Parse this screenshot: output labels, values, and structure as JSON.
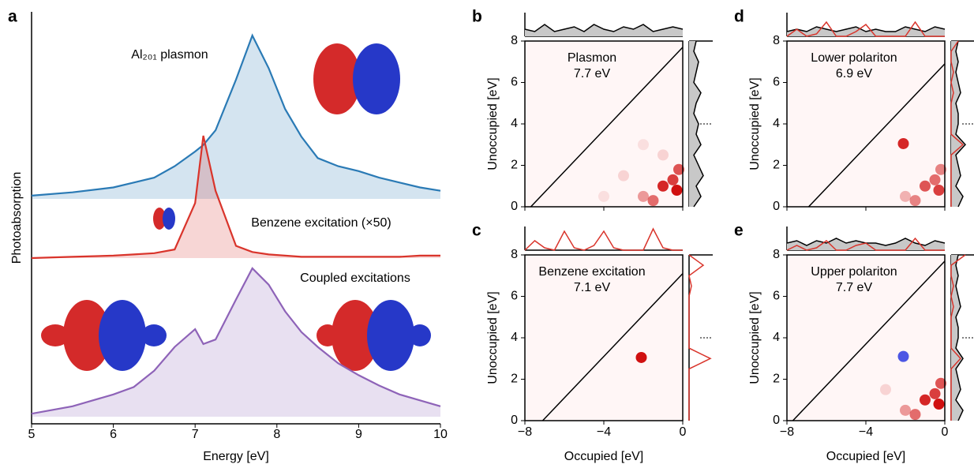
{
  "chart_data": [
    {
      "type": "line",
      "panel": "a",
      "xlabel": "Energy [eV]",
      "ylabel": "Photoabsorption",
      "x": [
        5,
        5.5,
        6,
        6.25,
        6.5,
        6.75,
        7,
        7.1,
        7.25,
        7.5,
        7.7,
        7.9,
        8.1,
        8.3,
        8.5,
        8.75,
        9,
        9.25,
        9.5,
        9.75,
        10
      ],
      "xlim": [
        5,
        10
      ],
      "xticks": [
        5,
        6,
        7,
        8,
        9,
        10
      ],
      "ylim": [
        0,
        1
      ],
      "series": [
        {
          "name": "Al₂₀₁ plasmon",
          "color": "#2a7ab5",
          "values": [
            0.02,
            0.04,
            0.07,
            0.1,
            0.13,
            0.2,
            0.29,
            0.33,
            0.42,
            0.73,
            1.0,
            0.8,
            0.55,
            0.38,
            0.25,
            0.2,
            0.17,
            0.13,
            0.1,
            0.07,
            0.05
          ]
        },
        {
          "name": "Benzene excitation (×50)",
          "color": "#d9342b",
          "values": [
            0,
            0.01,
            0.02,
            0.03,
            0.04,
            0.07,
            0.45,
            1.0,
            0.55,
            0.1,
            0.05,
            0.03,
            0.02,
            0.01,
            0.01,
            0.01,
            0.01,
            0.01,
            0.01,
            0.02,
            0.02
          ]
        },
        {
          "name": "Coupled excitations",
          "color": "#8e63b8",
          "values": [
            0.02,
            0.07,
            0.15,
            0.2,
            0.31,
            0.47,
            0.59,
            0.49,
            0.52,
            0.79,
            1.0,
            0.89,
            0.71,
            0.57,
            0.47,
            0.36,
            0.28,
            0.21,
            0.15,
            0.11,
            0.07
          ]
        }
      ]
    },
    {
      "type": "heatmap",
      "panel": "b",
      "title": "Plasmon",
      "title_color": "#2a7ab5",
      "energy": 7.7,
      "energy_label": "7.7 eV",
      "ylabel": "Unoccupied [eV]",
      "xlim": [
        -8,
        0
      ],
      "xticks": [
        -8,
        -4,
        0
      ],
      "ylim": [
        0,
        8
      ],
      "yticks": [
        0,
        2,
        4,
        6,
        8
      ],
      "hline": 4,
      "spots": {
        "x": [
          -1,
          -0.5,
          -0.3,
          -1.5,
          -0.2,
          -2,
          -3,
          -1,
          -2,
          -4
        ],
        "y": [
          1,
          1.3,
          0.8,
          0.3,
          1.8,
          0.5,
          1.5,
          2.5,
          3,
          0.5
        ],
        "values": [
          0.9,
          0.8,
          1,
          0.6,
          0.7,
          0.4,
          0.15,
          0.15,
          0.1,
          0.1
        ]
      },
      "margin_x": [
        -8,
        -7.5,
        -7,
        -6.5,
        -6,
        -5.5,
        -5,
        -4.5,
        -4,
        -3.5,
        -3,
        -2.5,
        -2,
        -1.5,
        -1,
        -0.5,
        0
      ],
      "top": [
        {
          "color": "#000000",
          "fill": "#c8c8c8",
          "values": [
            0.3,
            0.2,
            0.5,
            0.2,
            0.3,
            0.4,
            0.2,
            0.5,
            0.3,
            0.2,
            0.4,
            0.3,
            0.5,
            0.2,
            0.3,
            0.4,
            0.3
          ]
        }
      ],
      "margin_y": [
        0,
        0.5,
        1,
        1.5,
        2,
        2.5,
        3,
        3.5,
        4,
        4.5,
        5,
        5.5,
        6,
        6.5,
        7,
        7.5,
        8
      ],
      "right": [
        {
          "color": "#000000",
          "fill": "#c8c8c8",
          "values": [
            0.2,
            0.5,
            0.3,
            0.6,
            0.4,
            0.2,
            0.5,
            0.3,
            0.4,
            0.2,
            0.3,
            0.5,
            0.2,
            0.3,
            0.4,
            0.2,
            0.3
          ]
        }
      ]
    },
    {
      "type": "heatmap",
      "panel": "c",
      "title": "Benzene excitation",
      "title_color": "#d9342b",
      "energy": 7.1,
      "energy_label": "7.1 eV",
      "ylabel": "Unoccupied [eV]",
      "xlabel": "Occupied [eV]",
      "xlim": [
        -8,
        0
      ],
      "xticks": [
        {
          "value": -8,
          "label": "−8"
        },
        {
          "value": -4,
          "label": "−4"
        },
        0
      ],
      "ylim": [
        0,
        8
      ],
      "yticks": [
        0,
        2,
        4,
        6,
        8
      ],
      "hline": 4,
      "spots": {
        "x": [
          -2.1
        ],
        "y": [
          3.05
        ],
        "values": [
          1
        ]
      },
      "margin_x": [
        -8,
        -7.5,
        -7,
        -6.5,
        -6,
        -5.5,
        -5,
        -4.5,
        -4,
        -3.5,
        -3,
        -2.5,
        -2,
        -1.5,
        -1,
        -0.5,
        0
      ],
      "top": [
        {
          "color": "#d9342b",
          "values": [
            0,
            0.4,
            0.1,
            0,
            0.8,
            0.1,
            0,
            0.2,
            0.8,
            0.1,
            0,
            0,
            0,
            0.9,
            0.1,
            0,
            0
          ]
        }
      ],
      "margin_y": [
        0,
        0.5,
        1,
        1.5,
        2,
        2.5,
        3,
        3.5,
        4,
        4.5,
        5,
        5.5,
        6,
        6.5,
        7,
        7.5,
        8
      ],
      "right": [
        {
          "color": "#d9342b",
          "values": [
            0,
            0,
            0,
            0,
            0,
            0,
            0.9,
            0,
            0,
            0,
            0,
            0,
            0,
            0.1,
            0,
            0.6,
            0
          ]
        }
      ]
    },
    {
      "type": "heatmap",
      "panel": "d",
      "title": "Lower polariton",
      "title_color": "#9b59b6",
      "energy": 6.9,
      "energy_label": "6.9 eV",
      "ylabel": "Unoccupied [eV]",
      "xlim": [
        -8,
        0
      ],
      "xticks": [
        -8,
        -4,
        0
      ],
      "ylim": [
        0,
        8
      ],
      "yticks": [
        0,
        2,
        4,
        6,
        8
      ],
      "hline": 4,
      "spots": {
        "x": [
          -2.1,
          -1,
          -0.5,
          -0.3,
          -1.5,
          -0.2,
          -2
        ],
        "y": [
          3.05,
          1,
          1.3,
          0.8,
          0.3,
          1.8,
          0.5
        ],
        "values": [
          0.9,
          0.7,
          0.6,
          0.8,
          0.5,
          0.5,
          0.3
        ]
      },
      "margin_x": [
        -8,
        -7.5,
        -7,
        -6.5,
        -6,
        -5.5,
        -5,
        -4.5,
        -4,
        -3.5,
        -3,
        -2.5,
        -2,
        -1.5,
        -1,
        -0.5,
        0
      ],
      "top": [
        {
          "color": "#000000",
          "fill": "#c8c8c8",
          "values": [
            0.2,
            0.3,
            0.2,
            0.4,
            0.3,
            0.2,
            0.3,
            0.4,
            0.2,
            0.3,
            0.2,
            0.2,
            0.4,
            0.3,
            0.2,
            0.4,
            0.3
          ]
        },
        {
          "color": "#d9342b",
          "values": [
            0,
            0.3,
            0,
            0.1,
            0.6,
            0,
            0,
            0.2,
            0.5,
            0,
            0,
            0,
            0,
            0.6,
            0,
            0,
            0
          ]
        }
      ],
      "margin_y": [
        0,
        0.5,
        1,
        1.5,
        2,
        2.5,
        3,
        3.5,
        4,
        4.5,
        5,
        5.5,
        6,
        6.5,
        7,
        7.5,
        8
      ],
      "right": [
        {
          "color": "#000000",
          "fill": "#c8c8c8",
          "values": [
            0.3,
            0.5,
            0.2,
            0.4,
            0.3,
            0.2,
            0.6,
            0.2,
            0.3,
            0.3,
            0.2,
            0.4,
            0.3,
            0.2,
            0.3,
            0.2,
            0.3
          ]
        },
        {
          "color": "#d9342b",
          "values": [
            0,
            0,
            0,
            0,
            0,
            0,
            0.5,
            0,
            0,
            0,
            0,
            0.1,
            0,
            0.1,
            0,
            0,
            0.3
          ]
        }
      ]
    },
    {
      "type": "heatmap",
      "panel": "e",
      "title": "Upper polariton",
      "title_color": "#9b59b6",
      "energy": 7.7,
      "energy_label": "7.7 eV",
      "ylabel": "Unoccupied [eV]",
      "xlabel": "Occupied [eV]",
      "xlim": [
        -8,
        0
      ],
      "xticks": [
        {
          "value": -8,
          "label": "−8"
        },
        {
          "value": -4,
          "label": "−4"
        },
        0
      ],
      "ylim": [
        0,
        8
      ],
      "yticks": [
        0,
        2,
        4,
        6,
        8
      ],
      "hline": 4,
      "spots": {
        "x": [
          -2.1,
          -1,
          -0.5,
          -0.3,
          -1.5,
          -0.2,
          -2,
          -3
        ],
        "y": [
          3.1,
          1,
          1.3,
          0.8,
          0.3,
          1.8,
          0.5,
          1.5
        ],
        "values": [
          -0.8,
          0.9,
          0.8,
          1,
          0.6,
          0.7,
          0.4,
          0.15
        ]
      },
      "margin_x": [
        -8,
        -7.5,
        -7,
        -6.5,
        -6,
        -5.5,
        -5,
        -4.5,
        -4,
        -3.5,
        -3,
        -2.5,
        -2,
        -1.5,
        -1,
        -0.5,
        0
      ],
      "top": [
        {
          "color": "#000000",
          "fill": "#c8c8c8",
          "values": [
            0.3,
            0.4,
            0.2,
            0.4,
            0.3,
            0.5,
            0.3,
            0.4,
            0.3,
            0.3,
            0.2,
            0.3,
            0.5,
            0.3,
            0.2,
            0.4,
            0.3
          ]
        },
        {
          "color": "#d9342b",
          "values": [
            0,
            0.2,
            0,
            0.1,
            0.4,
            0,
            0,
            0.2,
            0.3,
            0,
            0,
            0,
            0,
            0.5,
            0,
            0,
            0
          ]
        }
      ],
      "margin_y": [
        0,
        0.5,
        1,
        1.5,
        2,
        2.5,
        3,
        3.5,
        4,
        4.5,
        5,
        5.5,
        6,
        6.5,
        7,
        7.5,
        8
      ],
      "right": [
        {
          "color": "#000000",
          "fill": "#c8c8c8",
          "values": [
            0.3,
            0.5,
            0.2,
            0.4,
            0.3,
            0.2,
            0.5,
            0.2,
            0.3,
            0.3,
            0.2,
            0.4,
            0.3,
            0.2,
            0.3,
            0.2,
            0.3
          ]
        },
        {
          "color": "#d9342b",
          "values": [
            0,
            0,
            0,
            0,
            0,
            0,
            0.4,
            0,
            0,
            0,
            0,
            0.1,
            0,
            0.1,
            0,
            0,
            0.6
          ]
        }
      ]
    }
  ]
}
